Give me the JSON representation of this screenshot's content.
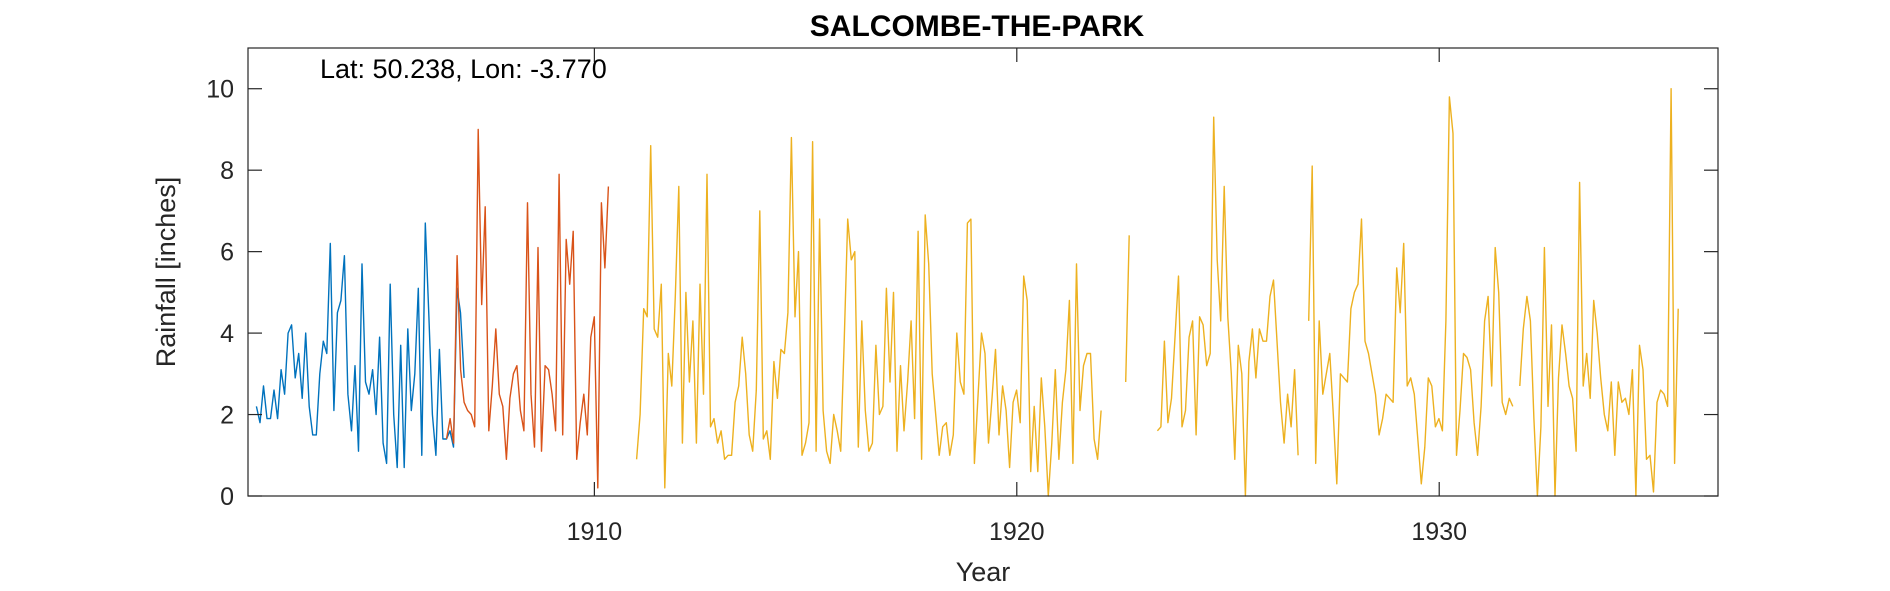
{
  "chart_data": {
    "type": "line",
    "title": "SALCOMBE-THE-PARK",
    "annotation": "Lat: 50.238, Lon: -3.770",
    "xlabel": "Year",
    "ylabel": "Rainfall [inches]",
    "xlim": [
      1901.8,
      1936.6
    ],
    "ylim": [
      0,
      11
    ],
    "xticks": [
      1910,
      1920,
      1930
    ],
    "yticks": [
      0,
      2,
      4,
      6,
      8,
      10
    ],
    "grid": false,
    "legend": "none",
    "colors": {
      "series1": "#0072BD",
      "series2": "#D95319",
      "series3": "#EDB120",
      "axis": "#262626"
    },
    "series": [
      {
        "start": 1902.0,
        "step": 0.0833,
        "values": [
          2.2,
          1.8,
          2.7,
          1.9,
          1.9,
          2.6,
          1.9,
          3.1,
          2.5,
          4.0,
          4.2,
          2.9,
          3.5,
          2.4,
          4.0,
          2.2,
          1.5,
          1.5,
          3.0,
          3.8,
          3.5,
          6.2,
          2.1,
          4.5,
          4.8,
          5.9,
          2.5,
          1.6,
          3.2,
          1.1,
          5.7,
          2.8,
          2.5,
          3.1,
          2.0,
          3.9,
          1.3,
          0.8,
          5.2,
          2.0,
          0.7,
          3.7,
          0.7,
          4.1,
          2.1,
          3.0,
          5.1,
          1.0,
          6.7,
          4.4,
          2.0,
          1.0,
          3.6,
          1.4,
          1.4,
          1.6,
          1.2,
          5.1,
          4.5,
          2.9
        ]
      },
      {
        "start": 1906.5,
        "step": 0.0833,
        "values": [
          1.4,
          1.9,
          1.3,
          5.9,
          3.1,
          2.3,
          2.1,
          2.0,
          1.7,
          9.0,
          4.7,
          7.1,
          1.6,
          2.7,
          4.1,
          2.5,
          2.2,
          0.9,
          2.4,
          3.0,
          3.2,
          2.1,
          1.6,
          7.2,
          2.5,
          1.2,
          6.1,
          1.1,
          3.2,
          3.1,
          2.5,
          1.6,
          7.9,
          1.5,
          6.3,
          5.2,
          6.5,
          0.9,
          1.8,
          2.5,
          1.5,
          3.9,
          4.4,
          0.2,
          7.2,
          5.6,
          7.6
        ]
      },
      {
        "start": 1911.0,
        "step": 0.0833,
        "values": [
          0.9,
          2.0,
          4.6,
          4.4,
          8.6,
          4.1,
          3.9,
          5.2,
          0.2,
          3.5,
          2.7,
          4.9,
          7.6,
          1.3,
          5.0,
          2.8,
          4.3,
          1.3,
          5.2,
          2.5,
          7.9,
          1.7,
          1.9,
          1.3,
          1.6,
          0.9,
          1.0,
          1.0,
          2.3,
          2.7,
          3.9,
          3.0,
          1.5,
          1.1,
          2.6,
          7.0,
          1.4,
          1.6,
          0.9,
          3.3,
          2.4,
          3.6,
          3.5,
          4.5,
          8.8,
          4.4,
          6.0,
          1.0,
          1.3,
          1.8,
          8.7,
          1.1,
          6.8,
          2.1,
          1.1,
          0.8,
          2.0,
          1.6,
          1.1,
          3.8,
          6.8,
          5.8,
          6.0,
          1.2,
          4.3,
          2.1,
          1.1,
          1.3,
          3.7,
          2.0,
          2.2,
          5.1,
          2.8,
          5.0,
          1.1,
          3.2,
          1.6,
          2.8,
          4.3,
          1.9,
          6.5,
          0.9,
          6.9,
          5.7,
          3.0,
          2.0,
          1.0,
          1.7,
          1.8,
          1.0,
          1.5,
          4.0,
          2.8,
          2.5,
          6.7,
          6.8,
          0.8,
          2.4,
          4.0,
          3.5,
          1.3,
          2.4,
          3.6,
          1.5,
          2.7,
          2.1,
          0.7,
          2.3,
          2.6,
          1.8,
          5.4,
          4.8,
          0.6,
          2.2,
          0.6,
          2.9,
          1.7,
          0.0,
          1.3,
          3.1,
          0.9,
          2.3,
          3.1,
          4.8,
          0.8,
          5.7,
          2.1,
          3.2,
          3.5,
          3.5,
          1.4,
          0.9,
          2.1,
          null,
          1.9,
          null,
          null,
          null,
          null,
          2.8,
          6.4,
          null,
          null,
          null,
          null,
          null,
          null,
          null,
          1.6,
          1.7,
          3.8,
          1.8,
          2.4,
          3.9,
          5.4,
          1.7,
          2.1,
          3.9,
          4.3,
          1.5,
          4.4,
          4.2,
          3.2,
          3.5,
          9.3,
          5.8,
          4.3,
          7.6,
          4.4,
          3.0,
          0.9,
          3.7,
          3.0,
          0.0,
          3.3,
          4.1,
          2.9,
          4.1,
          3.8,
          3.8,
          4.9,
          5.3,
          3.8,
          2.3,
          1.3,
          2.5,
          1.7,
          3.1,
          1.0,
          null,
          null,
          4.3,
          8.1,
          0.8,
          4.3,
          2.5,
          3.0,
          3.5,
          2.0,
          0.3,
          3.0,
          2.9,
          2.8,
          4.6,
          5.0,
          5.2,
          6.8,
          3.8,
          3.5,
          3.0,
          2.5,
          1.5,
          1.9,
          2.5,
          2.4,
          2.3,
          5.6,
          4.5,
          6.2,
          2.7,
          2.9,
          2.5,
          1.4,
          0.3,
          1.2,
          2.9,
          2.7,
          1.7,
          1.9,
          1.6,
          4.3,
          9.8,
          8.9,
          1.0,
          2.1,
          3.5,
          3.4,
          3.1,
          1.8,
          1.0,
          2.2,
          4.3,
          4.9,
          2.7,
          6.1,
          5.0,
          2.3,
          2.0,
          2.4,
          2.2,
          null,
          2.7,
          4.1,
          4.9,
          4.3,
          1.9,
          0.0,
          1.7,
          6.1,
          2.2,
          4.2,
          0.0,
          2.9,
          4.2,
          3.5,
          2.7,
          2.4,
          1.1,
          7.7,
          2.7,
          3.5,
          2.4,
          4.8,
          4.0,
          2.9,
          2.0,
          1.6,
          2.8,
          1.0,
          2.8,
          2.3,
          2.4,
          2.0,
          3.1,
          0.0,
          3.7,
          3.1,
          0.9,
          1.0,
          0.1,
          2.3,
          2.6,
          2.5,
          2.2,
          10.0,
          0.8,
          4.6
        ]
      }
    ]
  }
}
